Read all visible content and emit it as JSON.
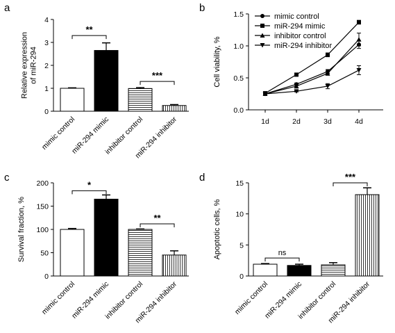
{
  "colors": {
    "ink": "#000000",
    "background": "#ffffff"
  },
  "chart_data": [
    {
      "panel": "a",
      "type": "bar",
      "ylabel": "Relative expression of miR-294",
      "ylim": [
        0,
        4
      ],
      "yticks": [
        0,
        1,
        2,
        3,
        4
      ],
      "categories": [
        "mimic control",
        "miR-294 mimic",
        "inhibitor control",
        "miR-294 inhibitor"
      ],
      "values": [
        1.0,
        2.65,
        0.99,
        0.25
      ],
      "errors": [
        0.02,
        0.33,
        0.04,
        0.04
      ],
      "fills": [
        "white",
        "black",
        "horizontal-stripes",
        "vertical-stripes"
      ],
      "significance": [
        {
          "from": 0,
          "to": 1,
          "label": "**",
          "y": 3.3
        },
        {
          "from": 2,
          "to": 3,
          "label": "***",
          "y": 1.3
        }
      ],
      "grid": false
    },
    {
      "panel": "b",
      "type": "line",
      "ylabel": "Cell viability, %",
      "ylim": [
        0,
        1.5
      ],
      "yticks": [
        0.0,
        0.5,
        1.0,
        1.5
      ],
      "ytick_labels": [
        "0.0",
        "0.5",
        "1.0",
        "1.5"
      ],
      "x": [
        "1d",
        "2d",
        "3d",
        "4d"
      ],
      "series": [
        {
          "name": "mimic control",
          "marker": "circle",
          "values": [
            0.25,
            0.4,
            0.6,
            1.02
          ],
          "errors": [
            0.02,
            0.02,
            0.03,
            0.06
          ]
        },
        {
          "name": "miR-294 mimic",
          "marker": "square",
          "values": [
            0.26,
            0.55,
            0.86,
            1.37
          ],
          "errors": [
            0.02,
            0.02,
            0.03,
            0.03
          ]
        },
        {
          "name": "inhibitor control",
          "marker": "triangle-up",
          "values": [
            0.25,
            0.37,
            0.57,
            1.1
          ],
          "errors": [
            0.02,
            0.03,
            0.03,
            0.1
          ]
        },
        {
          "name": "miR-294 inhibitor",
          "marker": "triangle-down",
          "values": [
            0.25,
            0.29,
            0.37,
            0.62
          ],
          "errors": [
            0.02,
            0.01,
            0.04,
            0.07
          ]
        }
      ],
      "legend": "top-left",
      "grid": false
    },
    {
      "panel": "c",
      "type": "bar",
      "ylabel": "Survival fraction, %",
      "ylim": [
        0,
        200
      ],
      "yticks": [
        0,
        50,
        100,
        150,
        200
      ],
      "categories": [
        "mimic control",
        "miR-294 mimic",
        "inhibitor control",
        "miR-294 inhibitor"
      ],
      "values": [
        100,
        165,
        100,
        45
      ],
      "errors": [
        2,
        9,
        1,
        9
      ],
      "fills": [
        "white",
        "black",
        "horizontal-stripes",
        "vertical-stripes"
      ],
      "significance": [
        {
          "from": 0,
          "to": 1,
          "label": "*",
          "y": 183
        },
        {
          "from": 2,
          "to": 3,
          "label": "**",
          "y": 112
        }
      ],
      "grid": false
    },
    {
      "panel": "d",
      "type": "bar",
      "ylabel": "Apoptotic cells, %",
      "ylim": [
        0,
        15
      ],
      "yticks": [
        0,
        5,
        10,
        15
      ],
      "categories": [
        "mimic control",
        "miR-294 mimic",
        "inhibitor control",
        "miR-294 inhibitor"
      ],
      "values": [
        1.9,
        1.7,
        1.8,
        13.1
      ],
      "errors": [
        0.1,
        0.2,
        0.35,
        1.1
      ],
      "fills": [
        "white",
        "black",
        "horizontal-stripes",
        "vertical-stripes"
      ],
      "significance": [
        {
          "from": 0,
          "to": 1,
          "label": "ns",
          "y": 2.9
        },
        {
          "from": 2,
          "to": 3,
          "label": "***",
          "y": 15.0
        }
      ],
      "grid": false
    }
  ]
}
